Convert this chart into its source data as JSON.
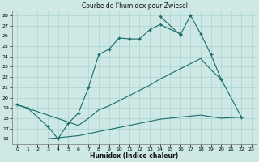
{
  "title": "Courbe de l'humidex pour Zwiesel",
  "xlabel": "Humidex (Indice chaleur)",
  "bg_color": "#cde8e5",
  "grid_color": "#aad4d0",
  "line_color": "#1a6b6b",
  "ylim": [
    15.5,
    28.5
  ],
  "xlim": [
    -0.5,
    23.5
  ],
  "yticks": [
    16,
    17,
    18,
    19,
    20,
    21,
    22,
    23,
    24,
    25,
    26,
    27,
    28
  ],
  "x_ticks": [
    0,
    1,
    2,
    3,
    4,
    5,
    6,
    7,
    8,
    9,
    10,
    11,
    12,
    13,
    14,
    15,
    16,
    17,
    18,
    19,
    20,
    21,
    22,
    23
  ],
  "line1_x": [
    0,
    1,
    3,
    4,
    5,
    6,
    7,
    8,
    9,
    10,
    11,
    12,
    13,
    14,
    16
  ],
  "line1_y": [
    19.3,
    19.0,
    17.2,
    16.0,
    17.5,
    18.5,
    21.0,
    24.2,
    24.7,
    25.8,
    25.7,
    25.7,
    26.6,
    27.1,
    26.2
  ],
  "line2_x": [
    14,
    16,
    17,
    18,
    19,
    20,
    22
  ],
  "line2_y": [
    27.9,
    26.1,
    28.0,
    26.2,
    24.2,
    21.8,
    18.1
  ],
  "line3_x": [
    0,
    6,
    7,
    8,
    9,
    10,
    11,
    12,
    13,
    14,
    15,
    16,
    17,
    18,
    19,
    20
  ],
  "line3_y": [
    19.3,
    17.3,
    18.0,
    18.8,
    19.2,
    19.7,
    20.2,
    20.7,
    21.2,
    21.8,
    22.3,
    22.8,
    23.3,
    23.8,
    22.7,
    21.8
  ],
  "line4_x": [
    3,
    6,
    7,
    8,
    9,
    10,
    11,
    12,
    13,
    14,
    15,
    16,
    17,
    18,
    20,
    22
  ],
  "line4_y": [
    16.0,
    16.3,
    16.5,
    16.7,
    16.9,
    17.1,
    17.3,
    17.5,
    17.7,
    17.9,
    18.0,
    18.1,
    18.2,
    18.3,
    18.0,
    18.1
  ]
}
